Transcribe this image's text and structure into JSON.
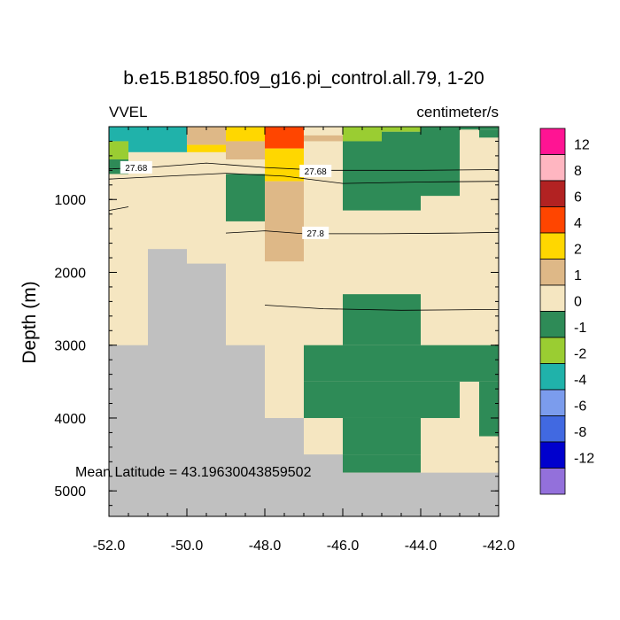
{
  "chart_data": {
    "type": "heatmap",
    "title": "b.e15.B1850.f09_g16.pi_control.all.79, 1-20",
    "left_label": "VVEL",
    "right_label": "centimeter/s",
    "ylabel": "Depth (m)",
    "xlabel": "",
    "xlim": [
      -52.0,
      -42.0
    ],
    "ylim": [
      5350,
      0
    ],
    "x_ticks": [
      -52.0,
      -50.0,
      -48.0,
      -46.0,
      -44.0,
      -42.0
    ],
    "x_tick_labels": [
      "-52.0",
      "-50.0",
      "-48.0",
      "-46.0",
      "-44.0",
      "-42.0"
    ],
    "y_ticks": [
      1000,
      2000,
      3000,
      4000,
      5000
    ],
    "y_tick_labels": [
      "1000",
      "2000",
      "3000",
      "4000",
      "5000"
    ],
    "annotation": "Mean Latitude = 43.19630043859502",
    "missing_color": "#c0c0c0",
    "colorbar": {
      "colors": [
        "#ff1493",
        "#ffb6c1",
        "#b22222",
        "#ff4500",
        "#ffd700",
        "#deb887",
        "#f5e6c1",
        "#2e8b57",
        "#9acd32",
        "#20b2aa",
        "#7b9ced",
        "#4169e1",
        "#0000cd",
        "#9370db"
      ],
      "labels": [
        "12",
        "8",
        "6",
        "4",
        "2",
        "1",
        "0",
        "-1",
        "-2",
        "-4",
        "-6",
        "-8",
        "-12"
      ]
    },
    "cells": [
      {
        "x": [
          -52.0,
          -51.5
        ],
        "d": [
          0,
          200
        ],
        "c": "#20b2aa"
      },
      {
        "x": [
          -52.0,
          -51.5
        ],
        "d": [
          200,
          450
        ],
        "c": "#9acd32"
      },
      {
        "x": [
          -52.0,
          -51.5
        ],
        "d": [
          450,
          650
        ],
        "c": "#2e8b57"
      },
      {
        "x": [
          -51.5,
          -50.0
        ],
        "d": [
          0,
          350
        ],
        "c": "#20b2aa"
      },
      {
        "x": [
          -50.0,
          -49.0
        ],
        "d": [
          0,
          250
        ],
        "c": "#deb887"
      },
      {
        "x": [
          -50.0,
          -49.0
        ],
        "d": [
          250,
          350
        ],
        "c": "#ffd700"
      },
      {
        "x": [
          -49.0,
          -48.0
        ],
        "d": [
          0,
          200
        ],
        "c": "#ffd700"
      },
      {
        "x": [
          -49.0,
          -48.0
        ],
        "d": [
          200,
          450
        ],
        "c": "#deb887"
      },
      {
        "x": [
          -49.0,
          -48.0
        ],
        "d": [
          650,
          1300
        ],
        "c": "#2e8b57"
      },
      {
        "x": [
          -48.0,
          -47.0
        ],
        "d": [
          0,
          300
        ],
        "c": "#ff4500"
      },
      {
        "x": [
          -48.0,
          -47.0
        ],
        "d": [
          300,
          750
        ],
        "c": "#ffd700"
      },
      {
        "x": [
          -48.0,
          -47.0
        ],
        "d": [
          750,
          1850
        ],
        "c": "#deb887"
      },
      {
        "x": [
          -47.0,
          -46.0
        ],
        "d": [
          120,
          200
        ],
        "c": "#deb887"
      },
      {
        "x": [
          -46.0,
          -45.0
        ],
        "d": [
          0,
          200
        ],
        "c": "#9acd32"
      },
      {
        "x": [
          -45.0,
          -44.0
        ],
        "d": [
          0,
          70
        ],
        "c": "#9acd32"
      },
      {
        "x": [
          -46.0,
          -45.0
        ],
        "d": [
          200,
          1150
        ],
        "c": "#2e8b57"
      },
      {
        "x": [
          -45.0,
          -44.0
        ],
        "d": [
          70,
          1150
        ],
        "c": "#2e8b57"
      },
      {
        "x": [
          -44.0,
          -43.0
        ],
        "d": [
          0,
          950
        ],
        "c": "#2e8b57"
      },
      {
        "x": [
          -43.0,
          -42.0
        ],
        "d": [
          0,
          40
        ],
        "c": "#2e8b57"
      },
      {
        "x": [
          -42.5,
          -42.0
        ],
        "d": [
          40,
          150
        ],
        "c": "#2e8b57"
      },
      {
        "x": [
          -46.0,
          -44.0
        ],
        "d": [
          2300,
          3000
        ],
        "c": "#2e8b57"
      },
      {
        "x": [
          -47.0,
          -42.0
        ],
        "d": [
          3000,
          3500
        ],
        "c": "#2e8b57"
      },
      {
        "x": [
          -47.0,
          -43.0
        ],
        "d": [
          3500,
          4000
        ],
        "c": "#2e8b57"
      },
      {
        "x": [
          -42.5,
          -42.0
        ],
        "d": [
          3500,
          4250
        ],
        "c": "#2e8b57"
      },
      {
        "x": [
          -46.0,
          -44.0
        ],
        "d": [
          4000,
          4500
        ],
        "c": "#2e8b57"
      },
      {
        "x": [
          -46.0,
          -45.0
        ],
        "d": [
          4500,
          4750
        ],
        "c": "#2e8b57"
      },
      {
        "x": [
          -45.0,
          -44.0
        ],
        "d": [
          4500,
          4750
        ],
        "c": "#2e8b57"
      },
      {
        "x": [
          -51.0,
          -50.0
        ],
        "d": [
          1680,
          5350
        ],
        "c": "#c0c0c0"
      },
      {
        "x": [
          -50.0,
          -49.0
        ],
        "d": [
          1880,
          5350
        ],
        "c": "#c0c0c0"
      },
      {
        "x": [
          -52.0,
          -51.0
        ],
        "d": [
          3000,
          5350
        ],
        "c": "#c0c0c0"
      },
      {
        "x": [
          -49.0,
          -48.0
        ],
        "d": [
          3000,
          5350
        ],
        "c": "#c0c0c0"
      },
      {
        "x": [
          -48.0,
          -47.0
        ],
        "d": [
          4000,
          5350
        ],
        "c": "#c0c0c0"
      },
      {
        "x": [
          -47.0,
          -46.0
        ],
        "d": [
          4500,
          5350
        ],
        "c": "#c0c0c0"
      },
      {
        "x": [
          -46.0,
          -42.0
        ],
        "d": [
          4750,
          5350
        ],
        "c": "#c0c0c0"
      }
    ],
    "contours": [
      {
        "label": "27.68",
        "label_at": [
          -51.3,
          570
        ],
        "points": [
          [
            -52.0,
            580
          ],
          [
            -51.0,
            560
          ],
          [
            -49.5,
            500
          ],
          [
            -48.0,
            560
          ],
          [
            -46.5,
            600
          ],
          [
            -44.0,
            600
          ],
          [
            -42.0,
            590
          ]
        ]
      },
      {
        "label": "27.68",
        "label_at": [
          -46.7,
          620
        ],
        "points": [
          [
            -52.0,
            720
          ],
          [
            -50.5,
            680
          ],
          [
            -49.0,
            640
          ],
          [
            -47.5,
            680
          ],
          [
            -46.0,
            780
          ],
          [
            -44.0,
            760
          ],
          [
            -42.0,
            750
          ]
        ]
      },
      {
        "label": "",
        "label_at": null,
        "points": [
          [
            -52.0,
            1150
          ],
          [
            -51.5,
            1100
          ]
        ]
      },
      {
        "label": "27.8",
        "label_at": [
          -46.7,
          1470
        ],
        "points": [
          [
            -49.0,
            1460
          ],
          [
            -48.0,
            1430
          ],
          [
            -47.0,
            1470
          ],
          [
            -45.0,
            1470
          ],
          [
            -43.0,
            1460
          ],
          [
            -42.0,
            1450
          ]
        ]
      },
      {
        "label": "",
        "label_at": null,
        "points": [
          [
            -48.0,
            2450
          ],
          [
            -46.5,
            2500
          ],
          [
            -44.5,
            2520
          ],
          [
            -42.0,
            2510
          ]
        ]
      }
    ]
  }
}
